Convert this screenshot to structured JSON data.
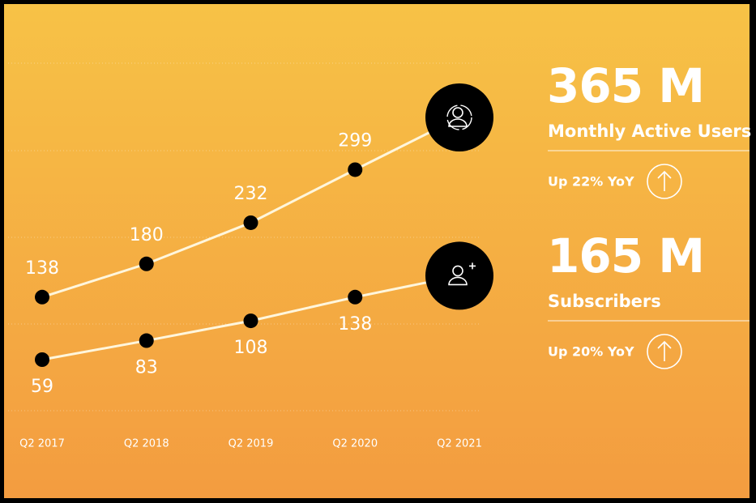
{
  "chart_data": {
    "type": "line",
    "categories": [
      "Q2  2017",
      "Q2  2018",
      "Q2  2019",
      "Q2 2020",
      "Q2 2021"
    ],
    "series": [
      {
        "name": "Monthly Active Users",
        "color": "#fff6dc",
        "values": [
          138,
          180,
          232,
          299,
          365
        ],
        "value_labels": [
          "138",
          "180",
          "232",
          "299",
          "365 M"
        ],
        "change": "Up 22% YoY"
      },
      {
        "name": "Subscribers",
        "color": "#fff6dc",
        "values": [
          59,
          83,
          108,
          138,
          165
        ],
        "value_labels": [
          "59",
          "83",
          "108",
          "138",
          "165 M"
        ],
        "change": "Up 20% YoY"
      }
    ]
  }
}
